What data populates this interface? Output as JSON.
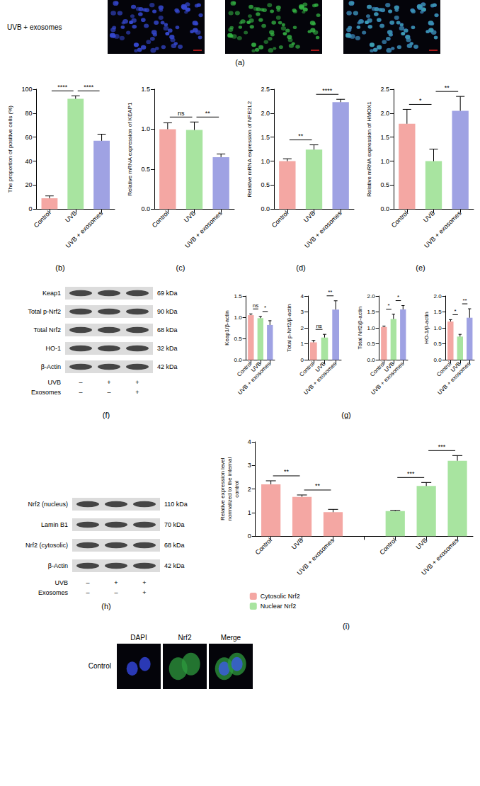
{
  "panel_labels": [
    "(a)",
    "(b)",
    "(c)",
    "(d)",
    "(e)",
    "(f)",
    "(g)",
    "(h)",
    "(i)"
  ],
  "panel_a": {
    "row_label": "UVB + exosomes"
  },
  "blots": [
    {
      "rows": [
        {
          "name": "Keap1",
          "size": "69 kDa"
        },
        {
          "name": "Total p-Nrf2",
          "size": "90 kDa"
        },
        {
          "name": "Total Nrf2",
          "size": "68 kDa"
        },
        {
          "name": "HO-1",
          "size": "32 kDa"
        },
        {
          "name": "β-Actin",
          "size": "42 kDa"
        }
      ],
      "conditions": [
        {
          "name": "UVB",
          "signs": [
            "–",
            "+",
            "+"
          ]
        },
        {
          "name": "Exosomes",
          "signs": [
            "–",
            "–",
            "+"
          ]
        }
      ]
    },
    {
      "rows": [
        {
          "name": "Nrf2 (nucleus)",
          "size": "110 kDa"
        },
        {
          "name": "Lamin B1",
          "size": "70 kDa"
        },
        {
          "name": "Nrf2 (cytosolic)",
          "size": "68 kDa"
        },
        {
          "name": "β-Actin",
          "size": "42 kDa"
        }
      ],
      "conditions": [
        {
          "name": "UVB",
          "signs": [
            "–",
            "+",
            "+"
          ]
        },
        {
          "name": "Exosomes",
          "signs": [
            "–",
            "–",
            "+"
          ]
        }
      ]
    }
  ],
  "panel_j": {
    "columns": [
      "DAPI",
      "Nrf2",
      "Merge"
    ],
    "row_label": "Control"
  },
  "chart_data": [
    {
      "type": "bar",
      "ylabel": "The proportion of positive cells (%)",
      "categories": [
        "Control",
        "UVB",
        "UVB + exosomes"
      ],
      "values": [
        9,
        92,
        57
      ],
      "errors": [
        2,
        2.5,
        5.5
      ],
      "colors": [
        "#f4a7a3",
        "#a8e4a0",
        "#9fa2e3"
      ],
      "ylim": [
        0,
        100
      ],
      "yticks": [
        0,
        20,
        40,
        60,
        80,
        100
      ],
      "grid": false,
      "annotations": [
        {
          "pair": [
            0,
            1
          ],
          "text": "****"
        },
        {
          "pair": [
            1,
            2
          ],
          "text": "****"
        }
      ]
    },
    {
      "type": "bar",
      "ylabel": "Relative mRNA expression of KEAP1",
      "categories": [
        "Control",
        "UVB",
        "UVB + exosomes"
      ],
      "values": [
        1.0,
        0.99,
        0.65
      ],
      "errors": [
        0.08,
        0.1,
        0.04
      ],
      "colors": [
        "#f4a7a3",
        "#a8e4a0",
        "#9fa2e3"
      ],
      "ylim": [
        0,
        1.5
      ],
      "yticks": [
        {
          "value": 0,
          "label": "0.0"
        },
        0.5,
        {
          "value": 1,
          "label": "1.0"
        },
        1.5
      ],
      "grid": false,
      "annotations": [
        {
          "pair": [
            0,
            1
          ],
          "text": "ns"
        },
        {
          "pair": [
            1,
            2
          ],
          "text": "**"
        }
      ]
    },
    {
      "type": "bar",
      "ylabel": "Relative mRNA expression of NFE2L2",
      "categories": [
        "Control",
        "UVB",
        "UVB + exosomes"
      ],
      "values": [
        1.0,
        1.24,
        2.23
      ],
      "errors": [
        0.05,
        0.1,
        0.06
      ],
      "colors": [
        "#f4a7a3",
        "#a8e4a0",
        "#9fa2e3"
      ],
      "ylim": [
        0,
        2.5
      ],
      "yticks": [
        {
          "value": 0,
          "label": "0.0"
        },
        0.5,
        {
          "value": 1,
          "label": "1.0"
        },
        1.5,
        {
          "value": 2,
          "label": "2.0"
        },
        2.5
      ],
      "grid": false,
      "annotations": [
        {
          "pair": [
            0,
            1
          ],
          "text": "**"
        },
        {
          "pair": [
            1,
            2
          ],
          "text": "****"
        }
      ]
    },
    {
      "type": "bar",
      "ylabel": "Relative mRNA expression of HMOX1",
      "categories": [
        "Control",
        "UVB",
        "UVB + exosomes"
      ],
      "values": [
        1.78,
        1.0,
        2.05
      ],
      "errors": [
        0.3,
        0.25,
        0.3
      ],
      "colors": [
        "#f4a7a3",
        "#a8e4a0",
        "#9fa2e3"
      ],
      "ylim": [
        0,
        2.5
      ],
      "yticks": [
        {
          "value": 0,
          "label": "0.0"
        },
        0.5,
        {
          "value": 1,
          "label": "1.0"
        },
        1.5,
        {
          "value": 2,
          "label": "2.0"
        },
        2.5
      ],
      "grid": false,
      "annotations": [
        {
          "pair": [
            0,
            1
          ],
          "text": "*"
        },
        {
          "pair": [
            1,
            2
          ],
          "text": "**"
        }
      ]
    },
    {
      "type": "bar",
      "ylabel": "Keap1/β-actin",
      "categories": [
        "Control",
        "UVB",
        "UVB + exosomes"
      ],
      "values": [
        1.05,
        0.98,
        0.82
      ],
      "errors": [
        0.03,
        0.04,
        0.1
      ],
      "colors": [
        "#f4a7a3",
        "#a8e4a0",
        "#9fa2e3"
      ],
      "ylim": [
        0,
        1.5
      ],
      "yticks": [
        {
          "value": 0,
          "label": "0.0"
        },
        0.5,
        {
          "value": 1,
          "label": "1.0"
        },
        1.5
      ],
      "grid": false,
      "annotations": [
        {
          "pair": [
            0,
            1
          ],
          "text": "ns"
        },
        {
          "pair": [
            1,
            2
          ],
          "text": "*"
        }
      ]
    },
    {
      "type": "bar",
      "ylabel": "Total p-Nrf2/β-actin",
      "categories": [
        "Control",
        "UVB",
        "UVB + exosomes"
      ],
      "values": [
        1.1,
        1.4,
        3.15
      ],
      "errors": [
        0.12,
        0.2,
        0.55
      ],
      "colors": [
        "#f4a7a3",
        "#a8e4a0",
        "#9fa2e3"
      ],
      "ylim": [
        0,
        4
      ],
      "yticks": [
        0,
        1,
        2,
        3,
        4
      ],
      "grid": false,
      "annotations": [
        {
          "pair": [
            0,
            1
          ],
          "text": "ns"
        },
        {
          "pair": [
            1,
            2
          ],
          "text": "**"
        }
      ]
    },
    {
      "type": "bar",
      "ylabel": "Total Nrf2/β-actin",
      "categories": [
        "Control",
        "UVB",
        "UVB + exosomes"
      ],
      "values": [
        1.03,
        1.28,
        1.58
      ],
      "errors": [
        0.03,
        0.15,
        0.12
      ],
      "colors": [
        "#f4a7a3",
        "#a8e4a0",
        "#9fa2e3"
      ],
      "ylim": [
        0,
        2
      ],
      "yticks": [
        {
          "value": 0,
          "label": "0.0"
        },
        0.5,
        {
          "value": 1,
          "label": "1.0"
        },
        1.5,
        {
          "value": 2,
          "label": "2.0"
        }
      ],
      "grid": false,
      "annotations": [
        {
          "pair": [
            0,
            1
          ],
          "text": "*"
        },
        {
          "pair": [
            1,
            2
          ],
          "text": "*"
        }
      ]
    },
    {
      "type": "bar",
      "ylabel": "HO-1/β-actin",
      "categories": [
        "Control",
        "UVB",
        "UVB + exosomes"
      ],
      "values": [
        1.2,
        0.73,
        1.32
      ],
      "errors": [
        0.06,
        0.07,
        0.28
      ],
      "colors": [
        "#f4a7a3",
        "#a8e4a0",
        "#9fa2e3"
      ],
      "ylim": [
        0,
        2
      ],
      "yticks": [
        {
          "value": 0,
          "label": "0.0"
        },
        0.5,
        {
          "value": 1,
          "label": "1.0"
        },
        1.5,
        {
          "value": 2,
          "label": "2.0"
        }
      ],
      "grid": false,
      "annotations": [
        {
          "pair": [
            0,
            1
          ],
          "text": "*"
        },
        {
          "pair": [
            1,
            2
          ],
          "text": "**"
        }
      ]
    },
    {
      "type": "bar",
      "ylabel": "Relative expression level normalized to the internal control",
      "categories": [
        "Control",
        "UVB",
        "UVB + exosomes",
        null,
        "Control",
        "UVB",
        "UVB + exosomes"
      ],
      "series": [
        {
          "name": "Cytosolic Nrf2",
          "color": "#f4a7a3",
          "values": [
            2.2,
            1.67,
            1.02,
            null,
            null,
            null,
            null
          ],
          "errors": [
            0.15,
            0.08,
            0.12,
            null,
            null,
            null,
            null
          ]
        },
        {
          "name": "Nuclear Nrf2",
          "color": "#a8e4a0",
          "values": [
            null,
            null,
            null,
            null,
            1.07,
            2.13,
            3.2
          ],
          "errors": [
            null,
            null,
            null,
            null,
            0.03,
            0.15,
            0.22
          ]
        }
      ],
      "ylim": [
        0,
        4
      ],
      "yticks": [
        0,
        1,
        2,
        3,
        4
      ],
      "grid": false,
      "legend": "bottom-left",
      "annotations": [
        {
          "pair": [
            0,
            1
          ],
          "text": "**"
        },
        {
          "pair": [
            1,
            2
          ],
          "text": "**"
        },
        {
          "pair": [
            4,
            5
          ],
          "text": "***"
        },
        {
          "pair": [
            5,
            6
          ],
          "text": "***"
        }
      ]
    }
  ]
}
